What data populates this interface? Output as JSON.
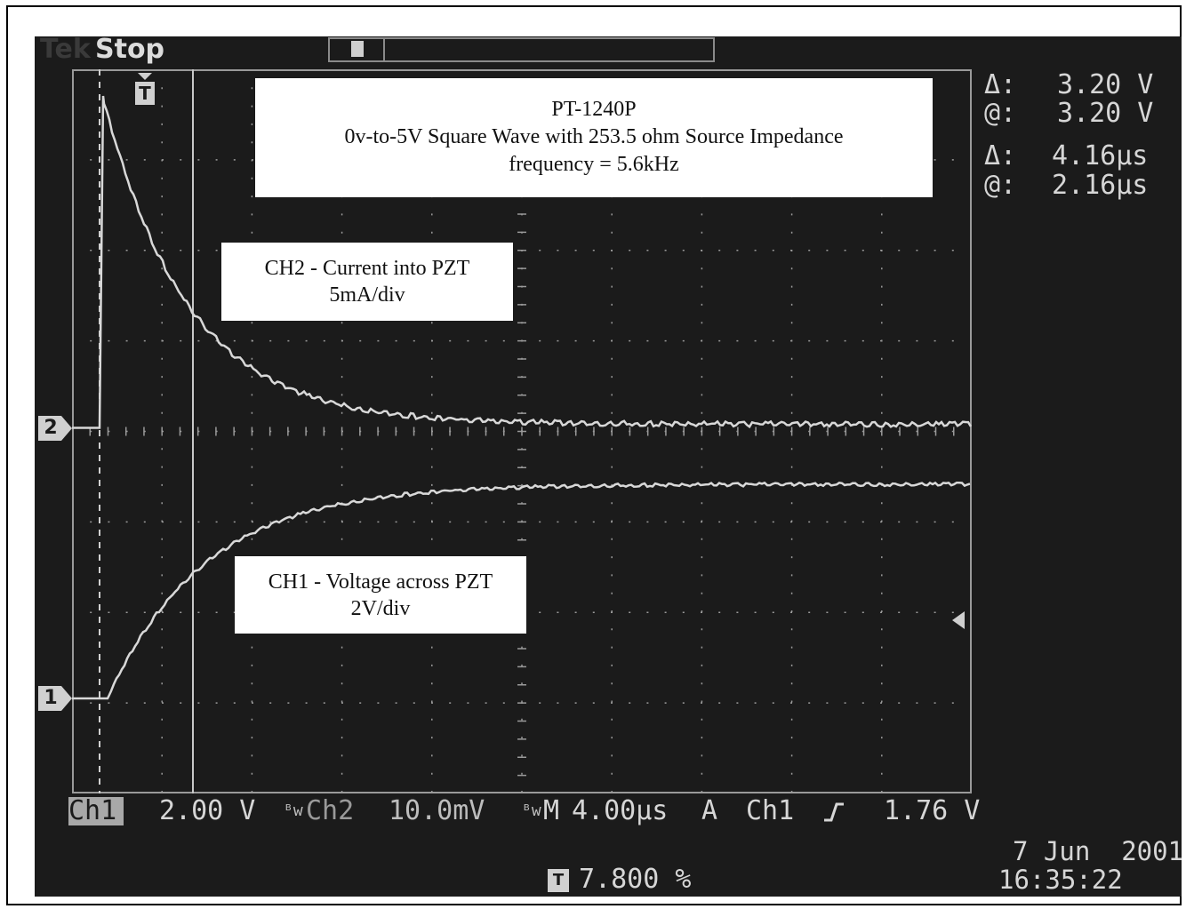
{
  "status": {
    "brand": "Tek",
    "acq_state": "Stop"
  },
  "notes": {
    "title_box": {
      "line1": "PT-1240P",
      "line2": "0v-to-5V Square Wave with 253.5 ohm Source Impedance",
      "line3": "frequency = 5.6kHz"
    },
    "ch2_box": {
      "line1": "CH2 - Current into PZT",
      "line2": "5mA/div"
    },
    "ch1_box": {
      "line1": "CH1 - Voltage across PZT",
      "line2": "2V/div"
    }
  },
  "cursors": {
    "volt_delta_label": "Δ:",
    "volt_delta_value": "3.20 V",
    "volt_at_label": "@:",
    "volt_at_value": "3.20 V",
    "time_delta_label": "Δ:",
    "time_delta_value": "4.16µs",
    "time_at_label": "@:",
    "time_at_value": "2.16µs"
  },
  "channel_markers": {
    "ch1": "1",
    "ch2": "2",
    "trigger": "T"
  },
  "bottom": {
    "ch1_label": "Ch1",
    "ch1_scale": "2.00 V",
    "ch2_label": "Ch2",
    "ch2_scale": "10.0mV",
    "time_label": "M",
    "time_scale": "4.00µs",
    "trig_mode": "A",
    "trig_source": "Ch1",
    "trig_level": "1.76 V",
    "trig_pos_value": "7.800 %",
    "date": "7 Jun  2001",
    "time": "16:35:22"
  },
  "colors": {
    "screen_bg": "#1b1b1b",
    "trace": "#d8d8d8",
    "grid": "#9a9a9a",
    "label_fg": "#d6d6d6"
  }
}
